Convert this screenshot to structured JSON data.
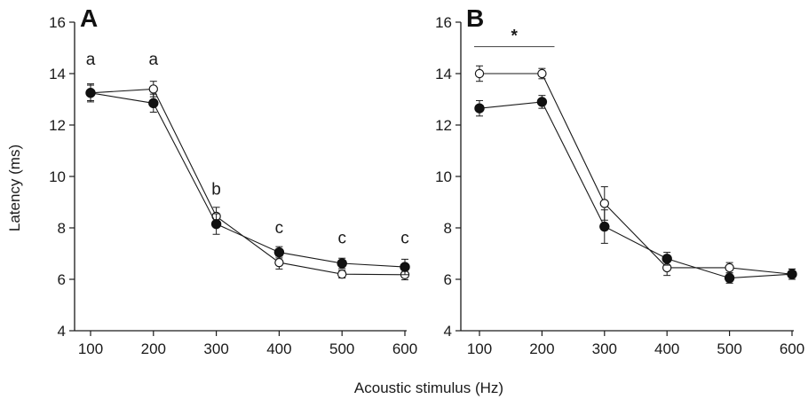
{
  "chart_data": [
    {
      "panel": "A",
      "type": "line",
      "x": [
        100,
        200,
        300,
        400,
        500,
        600
      ],
      "xlim": [
        100,
        600
      ],
      "ylim": [
        4,
        16
      ],
      "xticks": [
        "100",
        "200",
        "300",
        "400",
        "500",
        "600"
      ],
      "yticks": [
        "4",
        "6",
        "8",
        "10",
        "12",
        "14",
        "16"
      ],
      "ylabel": "Latency (ms)",
      "grid": false,
      "series": [
        {
          "marker": "filled",
          "values": [
            13.25,
            12.85,
            8.15,
            7.05,
            6.62,
            6.48
          ],
          "errors": [
            0.35,
            0.35,
            0.4,
            0.22,
            0.2,
            0.3
          ]
        },
        {
          "marker": "open",
          "values": [
            13.25,
            13.4,
            8.45,
            6.65,
            6.2,
            6.18
          ],
          "errors": [
            0.3,
            0.3,
            0.35,
            0.25,
            0.15,
            0.2
          ]
        }
      ],
      "annotations": [
        {
          "text": "a",
          "x": 100,
          "y": 14.35
        },
        {
          "text": "a",
          "x": 200,
          "y": 14.35
        },
        {
          "text": "b",
          "x": 300,
          "y": 9.3
        },
        {
          "text": "c",
          "x": 400,
          "y": 7.8
        },
        {
          "text": "c",
          "x": 500,
          "y": 7.4
        },
        {
          "text": "c",
          "x": 600,
          "y": 7.4
        }
      ]
    },
    {
      "panel": "B",
      "type": "line",
      "x": [
        100,
        200,
        300,
        400,
        500,
        600
      ],
      "xlim": [
        100,
        600
      ],
      "ylim": [
        4,
        16
      ],
      "xticks": [
        "100",
        "200",
        "300",
        "400",
        "500",
        "600"
      ],
      "yticks": [
        "4",
        "6",
        "8",
        "10",
        "12",
        "14",
        "16"
      ],
      "grid": false,
      "series": [
        {
          "marker": "filled",
          "values": [
            12.65,
            12.9,
            8.05,
            6.8,
            6.05,
            6.2
          ],
          "errors": [
            0.3,
            0.25,
            0.65,
            0.25,
            0.2,
            0.2
          ]
        },
        {
          "marker": "open",
          "values": [
            14.0,
            14.0,
            8.95,
            6.45,
            6.45,
            6.2
          ],
          "errors": [
            0.3,
            0.2,
            0.65,
            0.3,
            0.2,
            0.2
          ]
        }
      ],
      "significance": {
        "text": "*",
        "x_from": 100,
        "x_to": 220,
        "y": 15.05
      }
    }
  ],
  "shared": {
    "xlabel": "Acoustic stimulus (Hz)"
  },
  "style": {
    "line_color": "#1a1a1a",
    "filled_marker_color": "#111111",
    "open_marker_fill": "#ffffff"
  }
}
